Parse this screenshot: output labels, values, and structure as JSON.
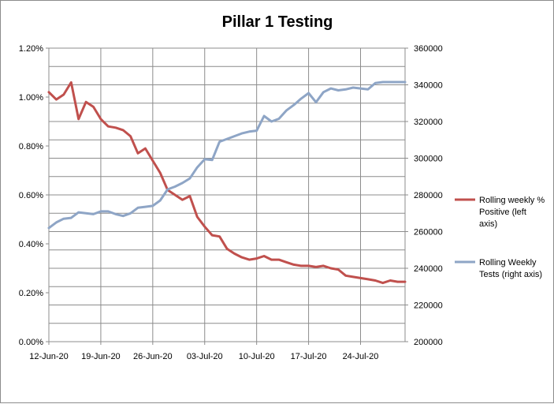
{
  "chart_data": {
    "type": "line",
    "title": "Pillar 1 Testing",
    "x_start": "12-Jun-20",
    "x_end": "30-Jul-20",
    "x_ticks": [
      "12-Jun-20",
      "19-Jun-20",
      "26-Jun-20",
      "03-Jul-20",
      "10-Jul-20",
      "17-Jul-20",
      "24-Jul-20"
    ],
    "y_left": {
      "min": 0,
      "max": 1.2,
      "step": 0.2,
      "ticks": [
        "0.00%",
        "0.20%",
        "0.40%",
        "0.60%",
        "0.80%",
        "1.00%",
        "1.20%"
      ]
    },
    "y_right": {
      "min": 200000,
      "max": 360000,
      "step": 20000,
      "ticks": [
        "200000",
        "220000",
        "240000",
        "260000",
        "280000",
        "300000",
        "320000",
        "340000",
        "360000"
      ]
    },
    "grid": true,
    "legend_position": "right",
    "series": [
      {
        "name": "Rolling weekly % Positive (left axis)",
        "axis": "left",
        "color": "#c0504d",
        "x": [
          "12-Jun-20",
          "13-Jun-20",
          "14-Jun-20",
          "15-Jun-20",
          "16-Jun-20",
          "17-Jun-20",
          "18-Jun-20",
          "19-Jun-20",
          "20-Jun-20",
          "21-Jun-20",
          "22-Jun-20",
          "23-Jun-20",
          "24-Jun-20",
          "25-Jun-20",
          "26-Jun-20",
          "27-Jun-20",
          "28-Jun-20",
          "29-Jun-20",
          "30-Jun-20",
          "01-Jul-20",
          "02-Jul-20",
          "03-Jul-20",
          "04-Jul-20",
          "05-Jul-20",
          "06-Jul-20",
          "07-Jul-20",
          "08-Jul-20",
          "09-Jul-20",
          "10-Jul-20",
          "11-Jul-20",
          "12-Jul-20",
          "13-Jul-20",
          "14-Jul-20",
          "15-Jul-20",
          "16-Jul-20",
          "17-Jul-20",
          "18-Jul-20",
          "19-Jul-20",
          "20-Jul-20",
          "21-Jul-20",
          "22-Jul-20",
          "23-Jul-20",
          "24-Jul-20",
          "25-Jul-20",
          "26-Jul-20",
          "27-Jul-20",
          "28-Jul-20",
          "29-Jul-20",
          "30-Jul-20"
        ],
        "y": [
          1.02,
          0.99,
          1.01,
          1.06,
          0.91,
          0.98,
          0.96,
          0.91,
          0.88,
          0.875,
          0.865,
          0.84,
          0.77,
          0.79,
          0.74,
          0.69,
          0.62,
          0.6,
          0.58,
          0.595,
          0.51,
          0.47,
          0.435,
          0.43,
          0.38,
          0.36,
          0.345,
          0.335,
          0.34,
          0.35,
          0.335,
          0.335,
          0.325,
          0.315,
          0.31,
          0.31,
          0.305,
          0.31,
          0.3,
          0.295,
          0.27,
          0.265,
          0.26,
          0.255,
          0.25,
          0.24,
          0.25,
          0.245,
          0.245
        ]
      },
      {
        "name": "Rolling Weekly Tests (right axis)",
        "axis": "right",
        "color": "#8ea5c6",
        "x": [
          "12-Jun-20",
          "13-Jun-20",
          "14-Jun-20",
          "15-Jun-20",
          "16-Jun-20",
          "17-Jun-20",
          "18-Jun-20",
          "19-Jun-20",
          "20-Jun-20",
          "21-Jun-20",
          "22-Jun-20",
          "23-Jun-20",
          "24-Jun-20",
          "25-Jun-20",
          "26-Jun-20",
          "27-Jun-20",
          "28-Jun-20",
          "29-Jun-20",
          "30-Jun-20",
          "01-Jul-20",
          "02-Jul-20",
          "03-Jul-20",
          "04-Jul-20",
          "05-Jul-20",
          "06-Jul-20",
          "07-Jul-20",
          "08-Jul-20",
          "09-Jul-20",
          "10-Jul-20",
          "11-Jul-20",
          "12-Jul-20",
          "13-Jul-20",
          "14-Jul-20",
          "15-Jul-20",
          "16-Jul-20",
          "17-Jul-20",
          "18-Jul-20",
          "19-Jul-20",
          "20-Jul-20",
          "21-Jul-20",
          "22-Jul-20",
          "23-Jul-20",
          "24-Jul-20",
          "25-Jul-20",
          "26-Jul-20",
          "27-Jul-20",
          "28-Jul-20",
          "29-Jul-20",
          "30-Jul-20"
        ],
        "y": [
          262000,
          265000,
          267000,
          267500,
          270500,
          270000,
          269500,
          271000,
          271000,
          269500,
          268500,
          270000,
          273000,
          273500,
          274000,
          277000,
          283000,
          284500,
          286500,
          289000,
          295000,
          299500,
          299000,
          309000,
          310500,
          312000,
          313500,
          314500,
          315000,
          323000,
          320000,
          321500,
          326000,
          329000,
          332500,
          335500,
          330500,
          336000,
          338000,
          337000,
          337500,
          338500,
          338000,
          337500,
          341000,
          341500,
          341500,
          341500,
          341500
        ]
      }
    ]
  }
}
